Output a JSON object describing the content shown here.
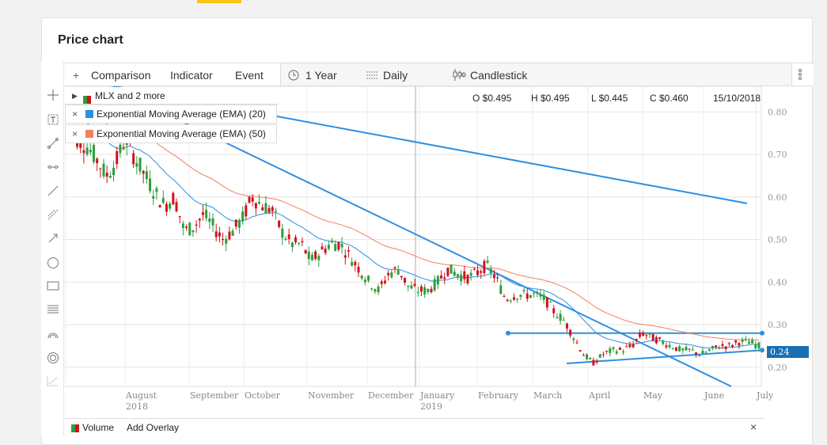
{
  "page": {
    "title": "Price chart"
  },
  "toolbar": {
    "comparison": "Comparison",
    "indicator": "Indicator",
    "event": "Event",
    "range": "1 Year",
    "interval": "Daily",
    "chart_type": "Candlestick"
  },
  "legend": {
    "main": "MLX and 2 more",
    "ema20": "Exponential Moving Average (EMA) (20)",
    "ema50": "Exponential Moving Average (EMA) (50)"
  },
  "ohlc": {
    "open": "O $0.495",
    "high": "H $0.495",
    "low": "L $0.445",
    "close": "C $0.460",
    "date": "15/10/2018"
  },
  "price_tag": "0.24",
  "volume": {
    "label": "Volume",
    "add_overlay": "Add Overlay"
  },
  "colors": {
    "up": "#2e9e3a",
    "down": "#d0121b",
    "ema20": "#2d8fe0",
    "ema50": "#f08060",
    "trendline": "#2d8fe0",
    "accent": "#f7c21b"
  },
  "icons": [
    "rectangle-icon",
    "plus-icon",
    "clock-icon",
    "interval-icon",
    "candlestick-icon",
    "more-icon",
    "close-icon",
    "crosshair-icon",
    "text-icon",
    "line-icon",
    "ray-icon",
    "circle-icon",
    "fibonacci-icon"
  ],
  "chart_data": {
    "type": "candlestick",
    "x_tick_labels": [
      {
        "label": "August",
        "sub": "2018"
      },
      {
        "label": "September",
        "sub": ""
      },
      {
        "label": "October",
        "sub": ""
      },
      {
        "label": "November",
        "sub": ""
      },
      {
        "label": "December",
        "sub": ""
      },
      {
        "label": "January",
        "sub": "2019"
      },
      {
        "label": "February",
        "sub": ""
      },
      {
        "label": "March",
        "sub": ""
      },
      {
        "label": "April",
        "sub": ""
      },
      {
        "label": "May",
        "sub": ""
      },
      {
        "label": "June",
        "sub": ""
      },
      {
        "label": "July",
        "sub": ""
      }
    ],
    "y_ticks": [
      "0.80",
      "0.70",
      "0.60",
      "0.50",
      "0.40",
      "0.30",
      "0.20"
    ],
    "ylim": [
      0.155,
      0.86
    ],
    "close_path": [
      0.78,
      0.74,
      0.72,
      0.69,
      0.65,
      0.68,
      0.74,
      0.69,
      0.65,
      0.61,
      0.58,
      0.6,
      0.52,
      0.53,
      0.56,
      0.53,
      0.5,
      0.52,
      0.55,
      0.6,
      0.58,
      0.57,
      0.52,
      0.49,
      0.49,
      0.45,
      0.47,
      0.49,
      0.49,
      0.46,
      0.43,
      0.4,
      0.38,
      0.42,
      0.43,
      0.39,
      0.38,
      0.38,
      0.4,
      0.43,
      0.42,
      0.41,
      0.42,
      0.44,
      0.41,
      0.36,
      0.37,
      0.37,
      0.37,
      0.36,
      0.33,
      0.31,
      0.27,
      0.23,
      0.21,
      0.23,
      0.24,
      0.24,
      0.25,
      0.28,
      0.27,
      0.26,
      0.25,
      0.24,
      0.24,
      0.23,
      0.24,
      0.25,
      0.25,
      0.26,
      0.26,
      0.25
    ],
    "ema20_end": 0.24,
    "ema50_end": 0.25,
    "trendlines": [
      {
        "from": [
          "2018-07",
          0.88
        ],
        "to": [
          "2019-06",
          0.585
        ]
      },
      {
        "from": [
          "2018-07",
          0.82
        ],
        "to": [
          "2019-06",
          0.155
        ]
      },
      {
        "from": [
          "2019-03",
          0.28
        ],
        "to": [
          "2019-07",
          0.28
        ]
      },
      {
        "from": [
          "2019-03",
          0.21
        ],
        "to": [
          "2019-07",
          0.24
        ]
      }
    ]
  }
}
